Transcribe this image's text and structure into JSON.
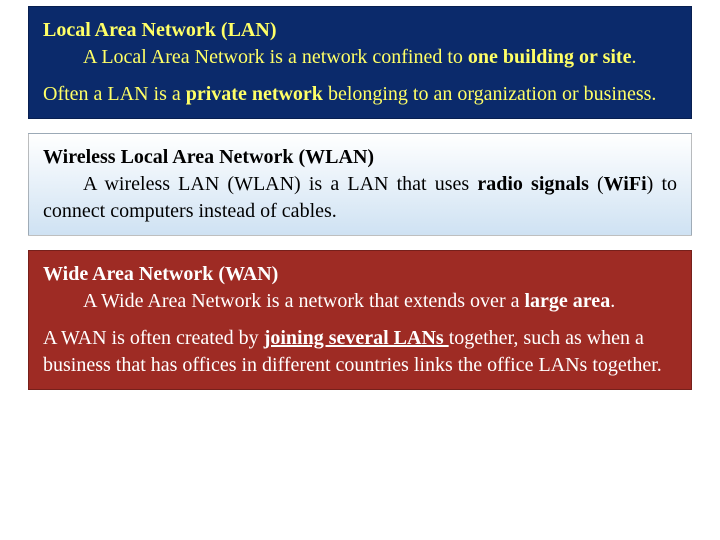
{
  "panels": {
    "lan": {
      "bg_color": "#0b2a6b",
      "text_color": "#ffff66",
      "heading": "Local Area Network (LAN)",
      "p1_pre": "A Local Area Network is a network confined to ",
      "p1_bold": "one building or site",
      "p1_post": ".",
      "p2_a": "Often a LAN is a ",
      "p2_b": "private network",
      "p2_c": " belonging to an organization or business."
    },
    "wlan": {
      "bg_top": "#ffffff",
      "bg_bottom": "#cfe2f3",
      "text_color": "#000000",
      "heading": "Wireless Local Area Network (WLAN)",
      "p1_a": "A wireless LAN (WLAN) is a LAN that uses ",
      "p1_b": "radio signals",
      "p1_c": " (",
      "p1_d": "WiFi",
      "p1_e": ") to connect computers instead of cables."
    },
    "wan": {
      "bg_color": "#9e2b24",
      "text_color": "#ffffff",
      "heading": "Wide Area Network (WAN)",
      "p1_a": "A Wide Area Network is a network that extends over a ",
      "p1_b": "large area",
      "p1_c": ".",
      "p2_a": "A WAN is often created by ",
      "p2_b": "joining several LANs ",
      "p2_c": "together, such as when a business that has offices in different countries links the office LANs together."
    }
  },
  "layout": {
    "font_family": "Times New Roman",
    "base_fontsize_pt": 15
  }
}
